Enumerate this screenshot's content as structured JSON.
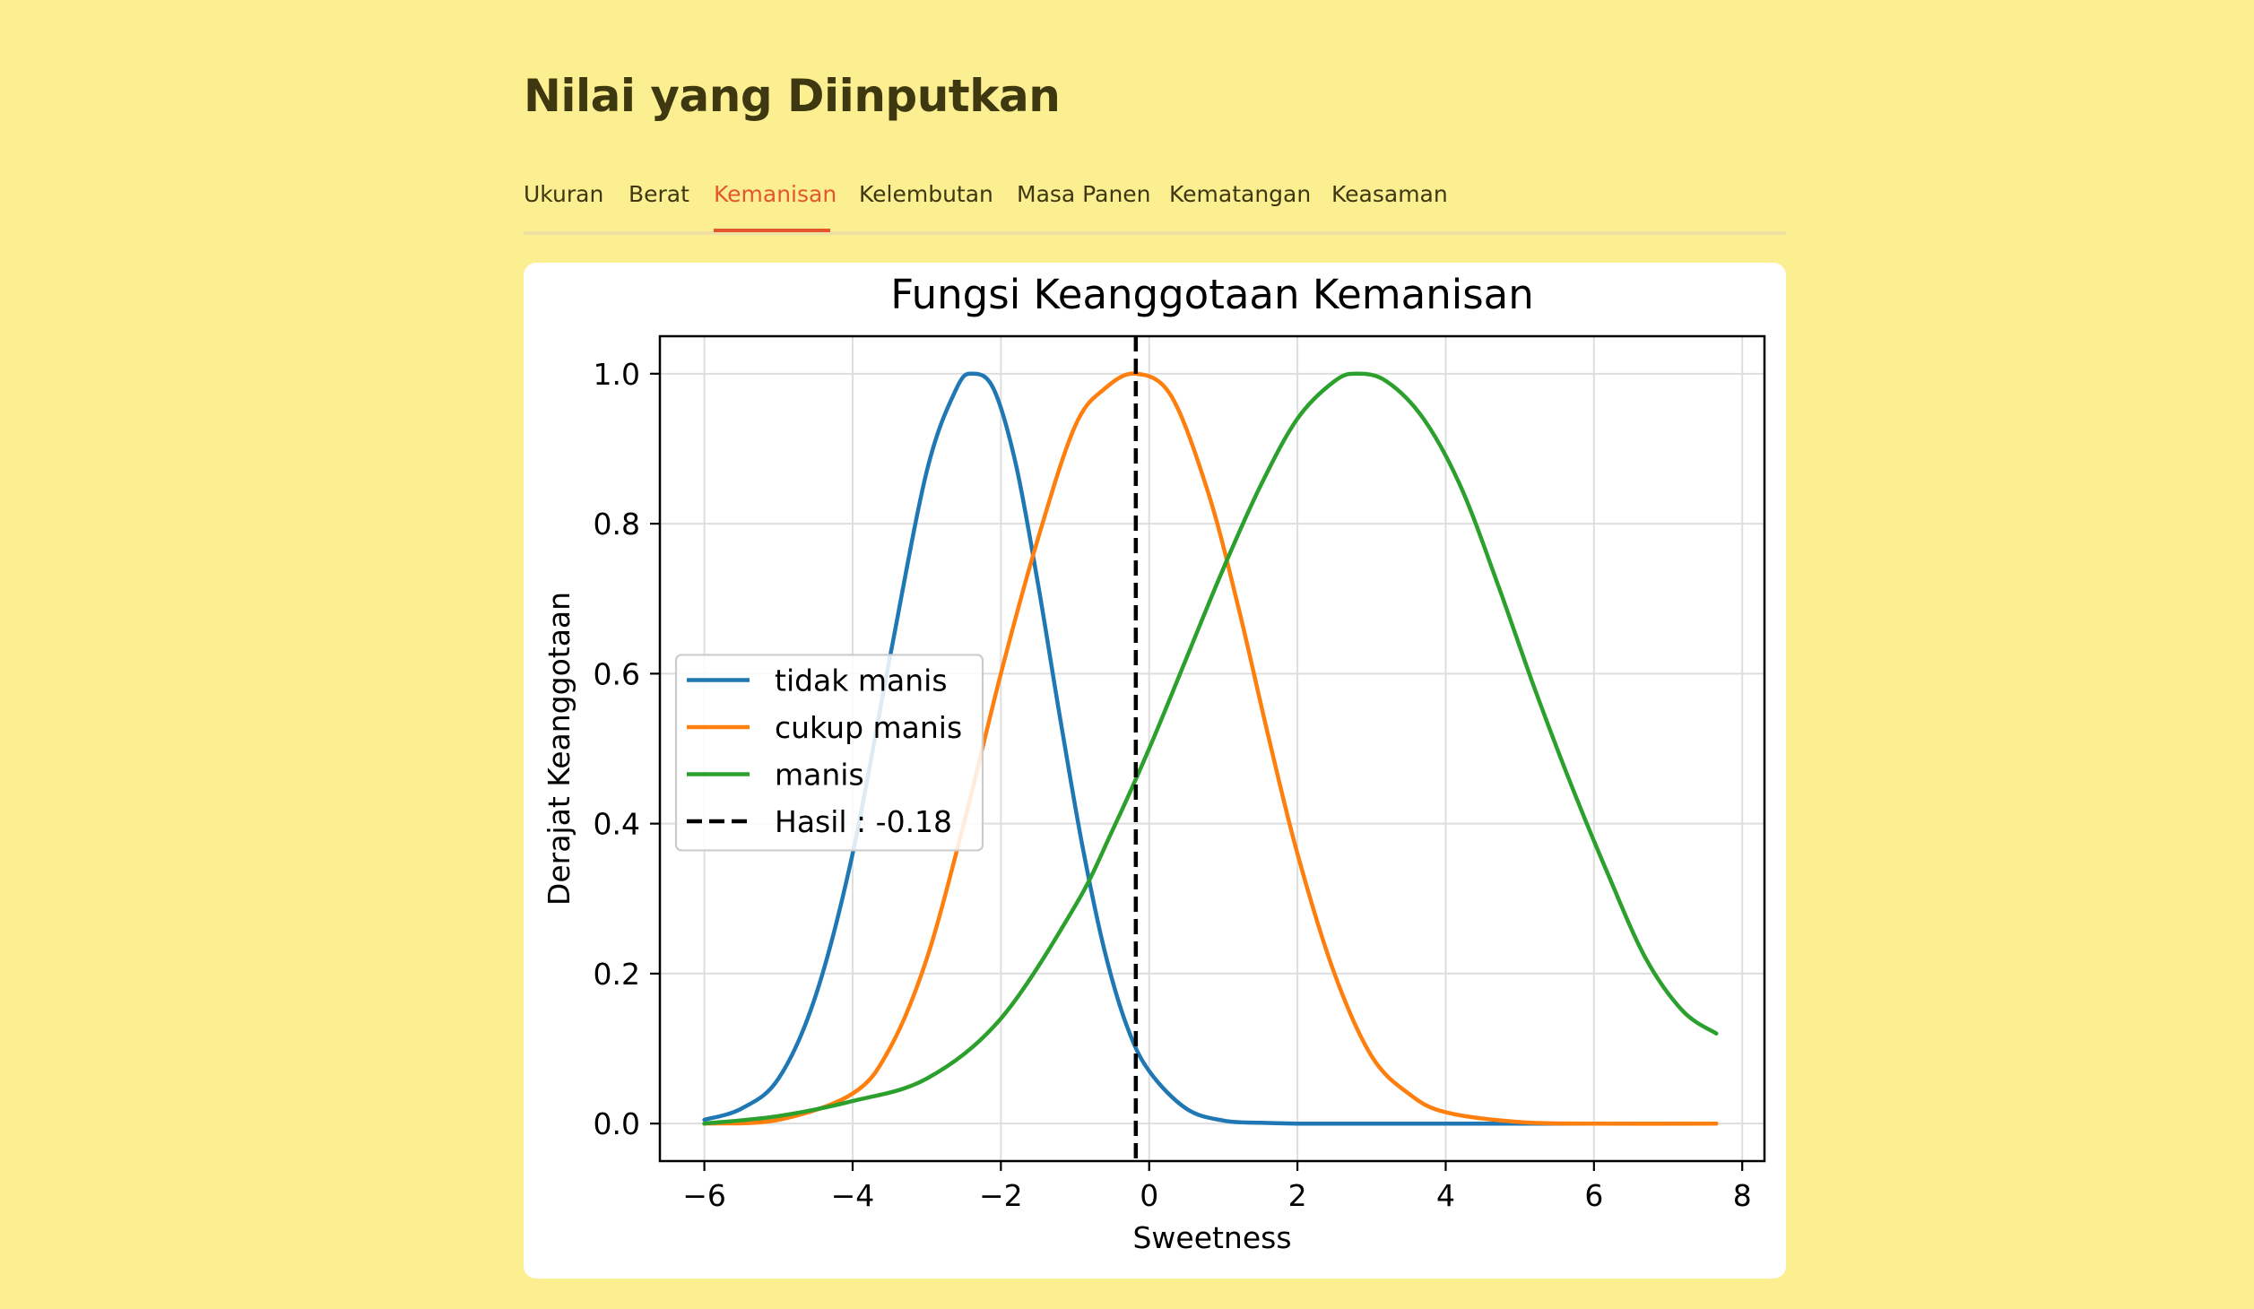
{
  "page": {
    "title": "Nilai yang Diinputkan"
  },
  "tabs": [
    {
      "label": "Ukuran"
    },
    {
      "label": "Berat"
    },
    {
      "label": "Kemanisan",
      "active": true
    },
    {
      "label": "Kelembutan"
    },
    {
      "label": "Masa Panen"
    },
    {
      "label": "Kematangan"
    },
    {
      "label": "Keasaman"
    }
  ],
  "colors": {
    "background": "#fcef91",
    "accent": "#e4572e",
    "series": [
      "#1f77b4",
      "#ff7f0e",
      "#2ca02c",
      "#000000"
    ]
  },
  "chart_data": {
    "type": "line",
    "title": "Fungsi Keanggotaan Kemanisan",
    "xlabel": "Sweetness",
    "ylabel": "Derajat Keanggotaan",
    "xlim": [
      -6.6,
      8.3
    ],
    "ylim": [
      -0.05,
      1.05
    ],
    "xticks": [
      -6,
      -4,
      -2,
      0,
      2,
      4,
      6,
      8
    ],
    "xtick_labels": [
      "−6",
      "−4",
      "−2",
      "0",
      "2",
      "4",
      "6",
      "8"
    ],
    "yticks": [
      0.0,
      0.2,
      0.4,
      0.6,
      0.8,
      1.0
    ],
    "ytick_labels": [
      "0.0",
      "0.2",
      "0.4",
      "0.6",
      "0.8",
      "1.0"
    ],
    "grid": true,
    "legend_position": "center-left",
    "series": [
      {
        "name": "tidak manis",
        "color": "#1f77b4",
        "x": [
          -6.0,
          -5.5,
          -5.0,
          -4.5,
          -4.0,
          -3.5,
          -3.0,
          -2.6,
          -2.38,
          -2.1,
          -1.8,
          -1.5,
          -1.2,
          -0.9,
          -0.6,
          -0.3,
          0.0,
          0.5,
          1.0,
          1.5,
          2.0,
          3.0,
          4.0,
          5.0,
          6.0,
          7.65
        ],
        "y": [
          0.005,
          0.02,
          0.06,
          0.17,
          0.36,
          0.62,
          0.87,
          0.98,
          1.0,
          0.98,
          0.88,
          0.72,
          0.54,
          0.37,
          0.23,
          0.13,
          0.07,
          0.02,
          0.004,
          0.001,
          0.0,
          0.0,
          0.0,
          0.0,
          0.0,
          0.0
        ]
      },
      {
        "name": "cukup manis",
        "color": "#ff7f0e",
        "x": [
          -6.0,
          -5.0,
          -4.0,
          -3.5,
          -3.0,
          -2.5,
          -2.0,
          -1.5,
          -1.0,
          -0.6,
          -0.18,
          0.3,
          0.8,
          1.2,
          1.6,
          2.0,
          2.5,
          3.0,
          3.5,
          4.0,
          5.0,
          6.0,
          7.65
        ],
        "y": [
          0.0,
          0.005,
          0.04,
          0.1,
          0.22,
          0.4,
          0.6,
          0.78,
          0.93,
          0.98,
          1.0,
          0.97,
          0.84,
          0.69,
          0.52,
          0.36,
          0.2,
          0.09,
          0.04,
          0.015,
          0.002,
          0.0,
          0.0
        ]
      },
      {
        "name": "manis",
        "color": "#2ca02c",
        "x": [
          -6.0,
          -5.0,
          -4.0,
          -3.0,
          -2.0,
          -1.0,
          -0.5,
          0.0,
          0.5,
          1.0,
          1.5,
          2.0,
          2.5,
          2.8,
          3.2,
          3.7,
          4.2,
          4.7,
          5.2,
          5.7,
          6.2,
          6.7,
          7.2,
          7.65
        ],
        "y": [
          0.0,
          0.01,
          0.03,
          0.06,
          0.14,
          0.29,
          0.39,
          0.5,
          0.62,
          0.74,
          0.85,
          0.94,
          0.99,
          1.0,
          0.99,
          0.94,
          0.85,
          0.72,
          0.58,
          0.45,
          0.33,
          0.22,
          0.15,
          0.12
        ]
      },
      {
        "name": "Hasil : -0.18",
        "color": "#000000",
        "dashed": true,
        "vline": -0.18
      }
    ]
  }
}
